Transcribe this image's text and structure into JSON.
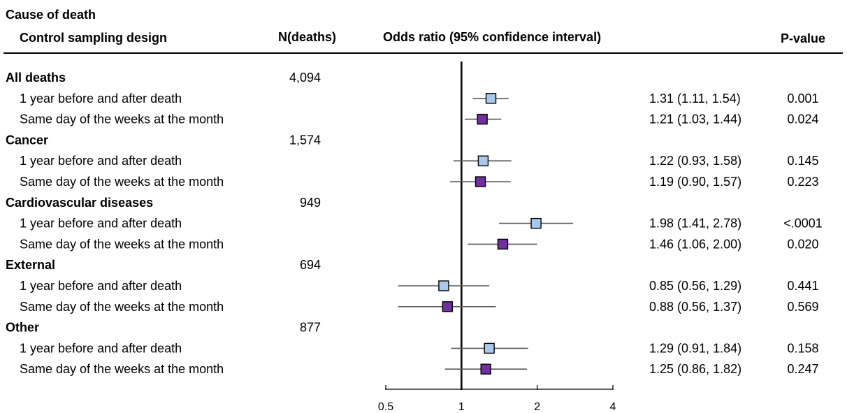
{
  "headers": {
    "cause": "Cause of death",
    "design": "Control sampling design",
    "n": "N(deaths)",
    "or": "Odds ratio (95% confidence interval)",
    "p": "P-value"
  },
  "colors": {
    "series1": "#a9c9ec",
    "series2": "#7030a0",
    "marker_border": "#000000",
    "ci_line": "#595959",
    "axis": "#000000"
  },
  "chart_data": {
    "type": "forest",
    "x_scale": "log2",
    "xlim": [
      0.5,
      4
    ],
    "x_ticks": [
      {
        "value": 0.5,
        "label": "0.5"
      },
      {
        "value": 1,
        "label": "1"
      },
      {
        "value": 2,
        "label": "2"
      },
      {
        "value": 4,
        "label": "4"
      }
    ],
    "reference_line": 1,
    "groups": [
      {
        "name": "All deaths",
        "n": "4,094",
        "rows": [
          {
            "label": "1 year before and after death",
            "series": 1,
            "or": 1.31,
            "lo": 1.11,
            "hi": 1.54,
            "ci_text": "1.31 (1.11, 1.54)",
            "p": "0.001"
          },
          {
            "label": "Same  day of the weeks at the month",
            "series": 2,
            "or": 1.21,
            "lo": 1.03,
            "hi": 1.44,
            "ci_text": "1.21 (1.03, 1.44)",
            "p": "0.024"
          }
        ]
      },
      {
        "name": "Cancer",
        "n": "1,574",
        "rows": [
          {
            "label": "1 year before and after death",
            "series": 1,
            "or": 1.22,
            "lo": 0.93,
            "hi": 1.58,
            "ci_text": "1.22 (0.93, 1.58)",
            "p": "0.145"
          },
          {
            "label": "Same  day of the weeks at the month",
            "series": 2,
            "or": 1.19,
            "lo": 0.9,
            "hi": 1.57,
            "ci_text": "1.19 (0.90, 1.57)",
            "p": "0.223"
          }
        ]
      },
      {
        "name": "Cardiovascular diseases",
        "n": "949",
        "rows": [
          {
            "label": "1 year before and after death",
            "series": 1,
            "or": 1.98,
            "lo": 1.41,
            "hi": 2.78,
            "ci_text": "1.98 (1.41, 2.78)",
            "p": "<.0001"
          },
          {
            "label": "Same  day of the weeks at the month",
            "series": 2,
            "or": 1.46,
            "lo": 1.06,
            "hi": 2.0,
            "ci_text": "1.46 (1.06, 2.00)",
            "p": "0.020"
          }
        ]
      },
      {
        "name": "External",
        "n": "694",
        "rows": [
          {
            "label": "1 year before and after death",
            "series": 1,
            "or": 0.85,
            "lo": 0.56,
            "hi": 1.29,
            "ci_text": "0.85 (0.56, 1.29)",
            "p": "0.441"
          },
          {
            "label": "Same  day of the weeks at the month",
            "series": 2,
            "or": 0.88,
            "lo": 0.56,
            "hi": 1.37,
            "ci_text": "0.88 (0.56, 1.37)",
            "p": "0.569"
          }
        ]
      },
      {
        "name": "Other",
        "n": "877",
        "rows": [
          {
            "label": "1 year before and after death",
            "series": 1,
            "or": 1.29,
            "lo": 0.91,
            "hi": 1.84,
            "ci_text": "1.29 (0.91, 1.84)",
            "p": "0.158"
          },
          {
            "label": "Same  day of the weeks at the month",
            "series": 2,
            "or": 1.25,
            "lo": 0.86,
            "hi": 1.82,
            "ci_text": "1.25 (0.86, 1.82)",
            "p": "0.247"
          }
        ]
      }
    ]
  }
}
